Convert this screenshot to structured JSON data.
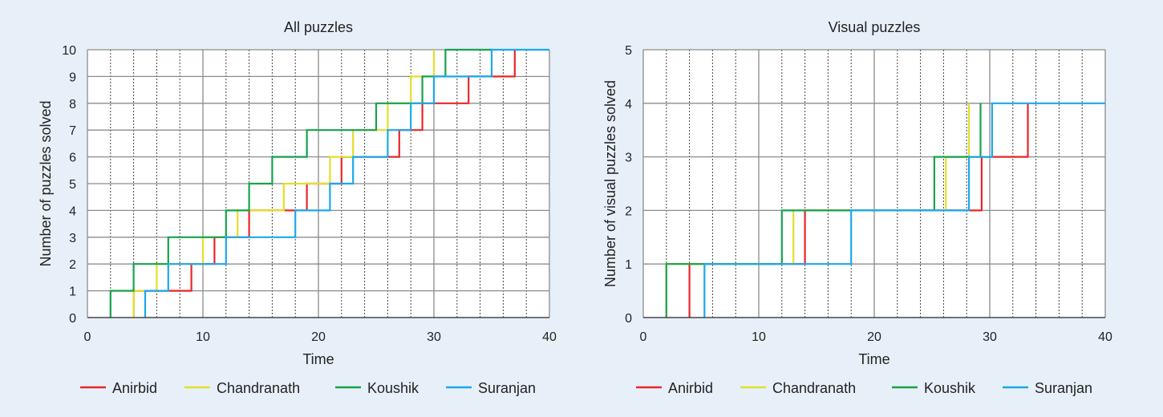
{
  "colors": {
    "background": "#e7f0f9",
    "plot_area": "#ffffff",
    "major_grid": "#8c8c8c",
    "minor_grid": "#444444",
    "axis": "#333333",
    "text": "#222222"
  },
  "chart_data": [
    {
      "type": "line",
      "step": "post",
      "title": "All puzzles",
      "xlabel": "Time",
      "ylabel": "Number of puzzles solved",
      "xlim": [
        0,
        40
      ],
      "ylim": [
        0,
        10
      ],
      "x_ticks": [
        0,
        10,
        20,
        30,
        40
      ],
      "y_ticks": [
        0,
        1,
        2,
        3,
        4,
        5,
        6,
        7,
        8,
        9,
        10
      ],
      "grid": true,
      "legend": "bottom",
      "series": [
        {
          "name": "Anirbid",
          "color": "#e8262a",
          "x": [
            4,
            4,
            5,
            7,
            9,
            11,
            14,
            18,
            19,
            22,
            27,
            29,
            33,
            37,
            37
          ],
          "y": [
            0,
            1,
            1,
            1,
            2,
            3,
            4,
            4,
            5,
            6,
            7,
            8,
            9,
            10,
            10
          ]
        },
        {
          "name": "Chandranath",
          "color": "#e6dd2c",
          "x": [
            4,
            4,
            6,
            10,
            13,
            17,
            21,
            23,
            26,
            28,
            30,
            30
          ],
          "y": [
            0,
            1,
            2,
            3,
            4,
            5,
            6,
            7,
            8,
            9,
            10,
            10
          ]
        },
        {
          "name": "Koushik",
          "color": "#16a34c",
          "x": [
            2,
            2,
            4,
            7,
            12,
            14,
            16,
            19,
            25,
            29,
            31,
            35
          ],
          "y": [
            0,
            1,
            2,
            3,
            4,
            5,
            6,
            7,
            8,
            9,
            10,
            10
          ]
        },
        {
          "name": "Suranjan",
          "color": "#1ba8ec",
          "x": [
            5,
            5,
            7,
            12,
            18,
            21,
            23,
            26,
            28,
            30,
            35,
            40
          ],
          "y": [
            0,
            1,
            2,
            3,
            4,
            5,
            6,
            7,
            8,
            9,
            10,
            10
          ]
        }
      ]
    },
    {
      "type": "line",
      "step": "post",
      "title": "Visual puzzles",
      "xlabel": "Time",
      "ylabel": "Number of visual puzzles solved",
      "xlim": [
        0,
        40
      ],
      "ylim": [
        0,
        5
      ],
      "x_ticks": [
        0,
        10,
        20,
        30,
        40
      ],
      "y_ticks": [
        0,
        1,
        2,
        3,
        4,
        5
      ],
      "grid": true,
      "legend": "bottom",
      "series": [
        {
          "name": "Anirbid",
          "color": "#e8262a",
          "x": [
            4,
            4,
            14,
            29.3,
            33.3,
            33.3
          ],
          "y": [
            0,
            1,
            2,
            3,
            4,
            4
          ]
        },
        {
          "name": "Chandranath",
          "color": "#e6dd2c",
          "x": [
            2,
            2,
            13,
            26.2,
            28.2,
            28.2
          ],
          "y": [
            0,
            1,
            2,
            3,
            4,
            4
          ]
        },
        {
          "name": "Koushik",
          "color": "#16a34c",
          "x": [
            2,
            2,
            12,
            25.2,
            29.2,
            29.2
          ],
          "y": [
            0,
            1,
            2,
            3,
            4,
            4
          ]
        },
        {
          "name": "Suranjan",
          "color": "#1ba8ec",
          "x": [
            5.3,
            5.3,
            18,
            28.2,
            30.2,
            40
          ],
          "y": [
            0,
            1,
            2,
            3,
            4,
            4
          ]
        }
      ]
    }
  ]
}
